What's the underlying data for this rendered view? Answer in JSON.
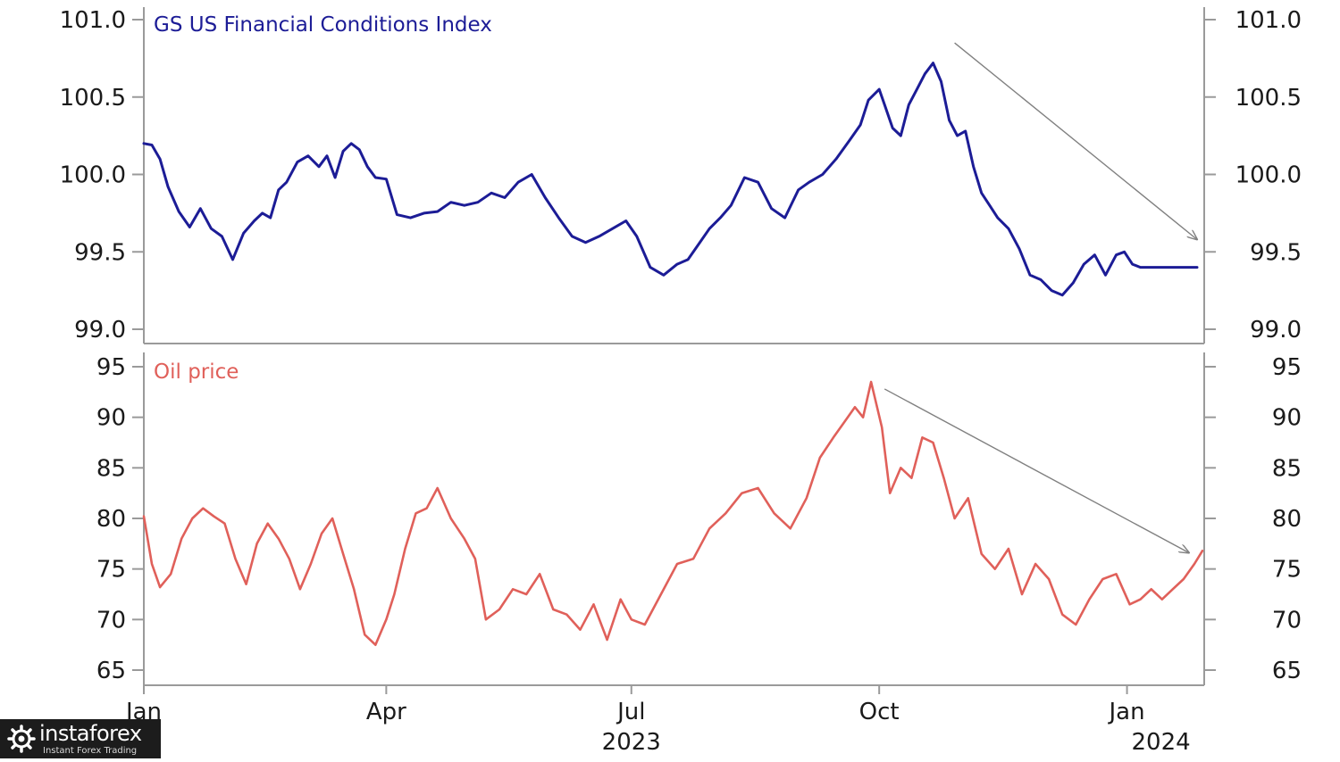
{
  "chart_data": [
    {
      "type": "line",
      "title": "GS US Financial Conditions Index",
      "color": "#1c1c96",
      "ylim": [
        99.0,
        101.0
      ],
      "yticks": [
        "101.0",
        "100.5",
        "100.0",
        "99.5",
        "99.0"
      ],
      "ytick_values": [
        101.0,
        100.5,
        100.0,
        99.5,
        99.0
      ],
      "grid": false,
      "series": [
        {
          "x": [
            "2023-01-01",
            "2023-01-04",
            "2023-01-07",
            "2023-01-10",
            "2023-01-14",
            "2023-01-18",
            "2023-01-22",
            "2023-01-26",
            "2023-01-30",
            "2023-02-03",
            "2023-02-07",
            "2023-02-11",
            "2023-02-14",
            "2023-02-17",
            "2023-02-20",
            "2023-02-23",
            "2023-02-27",
            "2023-03-03",
            "2023-03-07",
            "2023-03-10",
            "2023-03-13",
            "2023-03-16",
            "2023-03-19",
            "2023-03-22",
            "2023-03-25",
            "2023-03-28",
            "2023-04-01",
            "2023-04-05",
            "2023-04-10",
            "2023-04-15",
            "2023-04-20",
            "2023-04-25",
            "2023-04-30",
            "2023-05-05",
            "2023-05-10",
            "2023-05-15",
            "2023-05-20",
            "2023-05-25",
            "2023-05-30",
            "2023-06-04",
            "2023-06-09",
            "2023-06-14",
            "2023-06-19",
            "2023-06-24",
            "2023-06-29",
            "2023-07-03",
            "2023-07-08",
            "2023-07-13",
            "2023-07-18",
            "2023-07-22",
            "2023-07-26",
            "2023-07-30",
            "2023-08-03",
            "2023-08-07",
            "2023-08-12",
            "2023-08-17",
            "2023-08-22",
            "2023-08-27",
            "2023-09-01",
            "2023-09-05",
            "2023-09-10",
            "2023-09-15",
            "2023-09-20",
            "2023-09-24",
            "2023-09-27",
            "2023-10-01",
            "2023-10-03",
            "2023-10-06",
            "2023-10-09",
            "2023-10-12",
            "2023-10-15",
            "2023-10-18",
            "2023-10-21",
            "2023-10-24",
            "2023-10-27",
            "2023-10-30",
            "2023-11-02",
            "2023-11-05",
            "2023-11-08",
            "2023-11-11",
            "2023-11-14",
            "2023-11-18",
            "2023-11-22",
            "2023-11-26",
            "2023-11-30",
            "2023-12-04",
            "2023-12-08",
            "2023-12-12",
            "2023-12-16",
            "2023-12-20",
            "2023-12-24",
            "2023-12-28",
            "2023-12-31",
            "2024-01-03",
            "2024-01-06",
            "2024-01-09",
            "2024-01-12",
            "2024-01-15",
            "2024-01-18",
            "2024-01-21",
            "2024-01-24",
            "2024-01-27"
          ],
          "values": [
            100.2,
            100.19,
            100.1,
            99.92,
            99.76,
            99.66,
            99.78,
            99.65,
            99.6,
            99.45,
            99.62,
            99.7,
            99.75,
            99.72,
            99.9,
            99.95,
            100.08,
            100.12,
            100.05,
            100.12,
            99.98,
            100.15,
            100.2,
            100.16,
            100.05,
            99.98,
            99.97,
            99.74,
            99.72,
            99.75,
            99.76,
            99.82,
            99.8,
            99.82,
            99.88,
            99.85,
            99.95,
            100.0,
            99.85,
            99.72,
            99.6,
            99.56,
            99.6,
            99.65,
            99.7,
            99.6,
            99.4,
            99.35,
            99.42,
            99.45,
            99.55,
            99.65,
            99.72,
            99.8,
            99.98,
            99.95,
            99.78,
            99.72,
            99.9,
            99.95,
            100.0,
            100.1,
            100.22,
            100.32,
            100.48,
            100.55,
            100.45,
            100.3,
            100.25,
            100.45,
            100.55,
            100.65,
            100.72,
            100.6,
            100.35,
            100.25,
            100.28,
            100.05,
            99.88,
            99.8,
            99.72,
            99.65,
            99.52,
            99.35,
            99.32,
            99.25,
            99.22,
            99.3,
            99.42,
            99.48,
            99.35,
            99.48,
            99.5,
            99.42,
            99.4,
            99.4,
            99.4,
            99.4,
            99.4,
            99.4,
            99.4,
            99.4
          ]
        }
      ]
    },
    {
      "type": "line",
      "title": "Oil price",
      "color": "#e0605a",
      "ylim": [
        65,
        95
      ],
      "yticks": [
        "95",
        "90",
        "85",
        "80",
        "75",
        "70",
        "65"
      ],
      "ytick_values": [
        95,
        90,
        85,
        80,
        75,
        70,
        65
      ],
      "grid": false,
      "series": [
        {
          "x": [
            "2023-01-01",
            "2023-01-04",
            "2023-01-07",
            "2023-01-11",
            "2023-01-15",
            "2023-01-19",
            "2023-01-23",
            "2023-01-27",
            "2023-01-31",
            "2023-02-04",
            "2023-02-08",
            "2023-02-12",
            "2023-02-16",
            "2023-02-20",
            "2023-02-24",
            "2023-02-28",
            "2023-03-04",
            "2023-03-08",
            "2023-03-12",
            "2023-03-16",
            "2023-03-20",
            "2023-03-24",
            "2023-03-28",
            "2023-04-01",
            "2023-04-04",
            "2023-04-08",
            "2023-04-12",
            "2023-04-16",
            "2023-04-20",
            "2023-04-25",
            "2023-04-30",
            "2023-05-04",
            "2023-05-08",
            "2023-05-13",
            "2023-05-18",
            "2023-05-23",
            "2023-05-28",
            "2023-06-02",
            "2023-06-07",
            "2023-06-12",
            "2023-06-17",
            "2023-06-22",
            "2023-06-27",
            "2023-07-01",
            "2023-07-06",
            "2023-07-12",
            "2023-07-18",
            "2023-07-24",
            "2023-07-30",
            "2023-08-05",
            "2023-08-11",
            "2023-08-17",
            "2023-08-23",
            "2023-08-29",
            "2023-09-04",
            "2023-09-09",
            "2023-09-14",
            "2023-09-18",
            "2023-09-22",
            "2023-09-25",
            "2023-09-28",
            "2023-10-02",
            "2023-10-05",
            "2023-10-09",
            "2023-10-13",
            "2023-10-17",
            "2023-10-21",
            "2023-10-25",
            "2023-10-29",
            "2023-11-03",
            "2023-11-08",
            "2023-11-13",
            "2023-11-18",
            "2023-11-23",
            "2023-11-28",
            "2023-12-03",
            "2023-12-08",
            "2023-12-13",
            "2023-12-18",
            "2023-12-23",
            "2023-12-28",
            "2024-01-02",
            "2024-01-06",
            "2024-01-10",
            "2024-01-14",
            "2024-01-18",
            "2024-01-22",
            "2024-01-26",
            "2024-01-29"
          ],
          "values": [
            80.2,
            75.5,
            73.2,
            74.5,
            78.0,
            80.0,
            81.0,
            80.2,
            79.5,
            76.0,
            73.5,
            77.5,
            79.5,
            78.0,
            76.0,
            73.0,
            75.5,
            78.5,
            80.0,
            76.5,
            73.0,
            68.5,
            67.5,
            70.0,
            72.5,
            77.0,
            80.5,
            81.0,
            83.0,
            80.0,
            78.0,
            76.0,
            70.0,
            71.0,
            73.0,
            72.5,
            74.5,
            71.0,
            70.5,
            69.0,
            71.5,
            68.0,
            72.0,
            70.0,
            69.5,
            72.5,
            75.5,
            76.0,
            79.0,
            80.5,
            82.5,
            83.0,
            80.5,
            79.0,
            82.0,
            86.0,
            88.0,
            89.5,
            91.0,
            90.0,
            93.5,
            89.0,
            82.5,
            85.0,
            84.0,
            88.0,
            87.5,
            84.0,
            80.0,
            82.0,
            76.5,
            75.0,
            77.0,
            72.5,
            75.5,
            74.0,
            70.5,
            69.5,
            72.0,
            74.0,
            74.5,
            71.5,
            72.0,
            73.0,
            72.0,
            73.0,
            74.0,
            75.5,
            76.8
          ]
        }
      ]
    }
  ],
  "x_axis": {
    "ticks": [
      {
        "label": "Jan",
        "date": "2023-01-01"
      },
      {
        "label": "Apr",
        "date": "2023-04-01"
      },
      {
        "label": "Jul",
        "date": "2023-07-01"
      },
      {
        "label": "Oct",
        "date": "2023-10-01"
      },
      {
        "label": "Jan",
        "date": "2024-01-01"
      }
    ],
    "years": [
      {
        "label": "2023",
        "date": "2023-07-01"
      },
      {
        "label": "2024",
        "date": "2024-01-01"
      }
    ],
    "range": [
      "2023-01-01",
      "2024-01-29"
    ]
  },
  "annotations": [
    {
      "type": "arrow",
      "panel": 0,
      "from": {
        "x": "2023-10-29",
        "y": 100.85
      },
      "to": {
        "x": "2024-01-27",
        "y": 99.58
      }
    },
    {
      "type": "arrow",
      "panel": 1,
      "from": {
        "x": "2023-10-03",
        "y": 92.8
      },
      "to": {
        "x": "2024-01-24",
        "y": 76.6
      }
    }
  ],
  "watermark": {
    "brand": "instaforex",
    "tagline": "Instant Forex Trading"
  }
}
